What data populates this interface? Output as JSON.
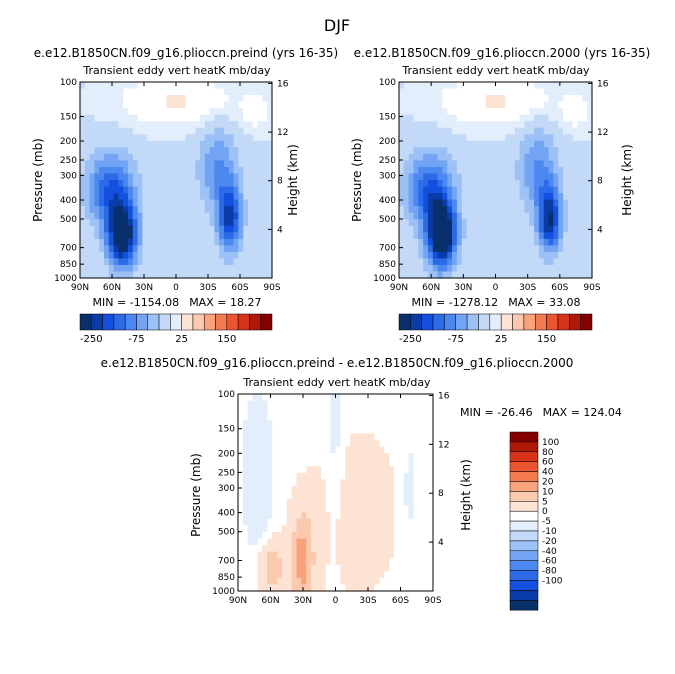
{
  "page_title": "DJF",
  "colors": {
    "blues": [
      "#08306b",
      "#0a3ca8",
      "#1450e0",
      "#2c6be8",
      "#4b88ef",
      "#72a4f3",
      "#9cc1f6",
      "#c3d9f8",
      "#e2eefb"
    ],
    "reds": [
      "#fde3d3",
      "#fbc9ad",
      "#f8a37c",
      "#f57a50",
      "#ee5430",
      "#d83218",
      "#b01808",
      "#870000"
    ],
    "white": "#ffffff"
  },
  "chart_data": [
    {
      "type": "heatmap",
      "id": "preind",
      "title": "e.e12.B1850CN.f09_g16.plioccn.preind (yrs 16-35)",
      "subtitle": "Transient eddy vert heatK mb/day",
      "ylabel": "Pressure (mb)",
      "y2label": "Height (km)",
      "xticks": [
        "90N",
        "60N",
        "30N",
        "0",
        "30S",
        "60S",
        "90S"
      ],
      "yticks": [
        "100",
        "150",
        "200",
        "250",
        "300",
        "400",
        "500",
        "700",
        "850",
        "1000"
      ],
      "y2ticks": [
        "16",
        "12",
        "8",
        "4"
      ],
      "min_label": "MIN = -1154.08",
      "max_label": "MAX = 18.27",
      "min": -1154.08,
      "max": 18.27,
      "xlim": [
        90,
        -90
      ],
      "ylim": [
        1000,
        100
      ],
      "yscale": "log"
    },
    {
      "type": "heatmap",
      "id": "y2000",
      "title": "e.e12.B1850CN.f09_g16.plioccn.2000 (yrs 16-35)",
      "subtitle": "Transient eddy vert heatK mb/day",
      "ylabel": "Pressure (mb)",
      "y2label": "Height (km)",
      "xticks": [
        "90N",
        "60N",
        "30N",
        "0",
        "30S",
        "60S",
        "90S"
      ],
      "yticks": [
        "100",
        "150",
        "200",
        "250",
        "300",
        "400",
        "500",
        "700",
        "850",
        "1000"
      ],
      "y2ticks": [
        "16",
        "12",
        "8",
        "4"
      ],
      "min_label": "MIN = -1278.12",
      "max_label": "MAX = 33.08",
      "min": -1278.12,
      "max": 33.08,
      "xlim": [
        90,
        -90
      ],
      "ylim": [
        1000,
        100
      ],
      "yscale": "log"
    },
    {
      "type": "heatmap",
      "id": "diff",
      "title": "e.e12.B1850CN.f09_g16.plioccn.preind - e.e12.B1850CN.f09_g16.plioccn.2000",
      "subtitle": "Transient eddy vert heatK mb/day",
      "ylabel": "Pressure (mb)",
      "y2label": "Height (km)",
      "xticks": [
        "90N",
        "60N",
        "30N",
        "0",
        "30S",
        "60S",
        "90S"
      ],
      "yticks": [
        "100",
        "150",
        "200",
        "250",
        "300",
        "400",
        "500",
        "700",
        "850",
        "1000"
      ],
      "y2ticks": [
        "16",
        "12",
        "8",
        "4"
      ],
      "min_label": "MIN = -26.46",
      "max_label": "MAX = 124.04",
      "min": -26.46,
      "max": 124.04,
      "xlim": [
        90,
        -90
      ],
      "ylim": [
        1000,
        100
      ],
      "yscale": "log"
    }
  ],
  "colorbar_top": {
    "tick_labels": [
      "-250",
      "-75",
      "25",
      "150"
    ]
  },
  "colorbar_diff": {
    "tick_labels": [
      "100",
      "80",
      "60",
      "40",
      "20",
      "10",
      "5",
      "0",
      "-5",
      "-10",
      "-20",
      "-40",
      "-60",
      "-80",
      "-100"
    ]
  }
}
